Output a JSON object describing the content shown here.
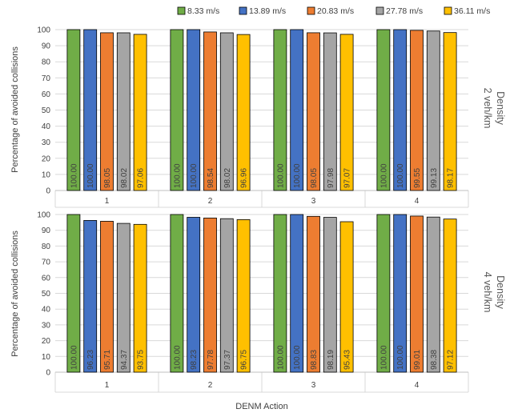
{
  "legend": [
    {
      "name": "8.33 m/s",
      "color": "#70ad47"
    },
    {
      "name": "13.89 m/s",
      "color": "#4472c4"
    },
    {
      "name": "20.83 m/s",
      "color": "#ed7d31"
    },
    {
      "name": "27.78 m/s",
      "color": "#a5a5a5"
    },
    {
      "name": "36.11 m/s",
      "color": "#ffc000"
    }
  ],
  "xlabel": "DENM Action",
  "chart_data": [
    {
      "type": "bar",
      "categories": [
        "1",
        "2",
        "3",
        "4"
      ],
      "ylabel": "Percentage of avoided collisions",
      "ylim": [
        0,
        100
      ],
      "yticks": [
        "0",
        "10",
        "20",
        "30",
        "40",
        "50",
        "60",
        "70",
        "80",
        "90",
        "100"
      ],
      "side_label": [
        "Density",
        "2 veh/km"
      ],
      "series": [
        {
          "name": "8.33 m/s",
          "values": [
            100.0,
            100.0,
            100.0,
            100.0
          ],
          "labels": [
            "100.00",
            "100.00",
            "100.00",
            "100.00"
          ]
        },
        {
          "name": "13.89 m/s",
          "values": [
            100.0,
            100.0,
            100.0,
            100.0
          ],
          "labels": [
            "100.00",
            "100.00",
            "100.00",
            "100.00"
          ]
        },
        {
          "name": "20.83 m/s",
          "values": [
            98.05,
            98.54,
            98.05,
            99.55
          ],
          "labels": [
            "98.05",
            "98.54",
            "98.05",
            "99.55"
          ]
        },
        {
          "name": "27.78 m/s",
          "values": [
            98.02,
            98.02,
            97.98,
            99.13
          ],
          "labels": [
            "98.02",
            "98.02",
            "97.98",
            "99.13"
          ]
        },
        {
          "name": "36.11 m/s",
          "values": [
            97.06,
            96.96,
            97.07,
            98.17
          ],
          "labels": [
            "97.06",
            "96.96",
            "97.07",
            "98.17"
          ]
        }
      ]
    },
    {
      "type": "bar",
      "categories": [
        "1",
        "2",
        "3",
        "4"
      ],
      "ylabel": "Percentage of avoided collisions",
      "ylim": [
        0,
        100
      ],
      "yticks": [
        "0",
        "10",
        "20",
        "30",
        "40",
        "50",
        "60",
        "70",
        "80",
        "90",
        "100"
      ],
      "side_label": [
        "Density",
        "4 veh/km"
      ],
      "series": [
        {
          "name": "8.33 m/s",
          "values": [
            100.0,
            100.0,
            100.0,
            100.0
          ],
          "labels": [
            "100.00",
            "100.00",
            "100.00",
            "100.00"
          ]
        },
        {
          "name": "13.89 m/s",
          "values": [
            96.23,
            98.23,
            100.0,
            100.0
          ],
          "labels": [
            "96.23",
            "98.23",
            "100.00",
            "100.00"
          ]
        },
        {
          "name": "20.83 m/s",
          "values": [
            95.71,
            97.78,
            98.83,
            99.01
          ],
          "labels": [
            "95.71",
            "97.78",
            "98.83",
            "99.01"
          ]
        },
        {
          "name": "27.78 m/s",
          "values": [
            94.37,
            97.37,
            98.19,
            98.38
          ],
          "labels": [
            "94.37",
            "97.37",
            "98.19",
            "98.38"
          ]
        },
        {
          "name": "36.11 m/s",
          "values": [
            93.75,
            96.75,
            95.43,
            97.12
          ],
          "labels": [
            "93.75",
            "96.75",
            "95.43",
            "97.12"
          ]
        }
      ]
    }
  ]
}
